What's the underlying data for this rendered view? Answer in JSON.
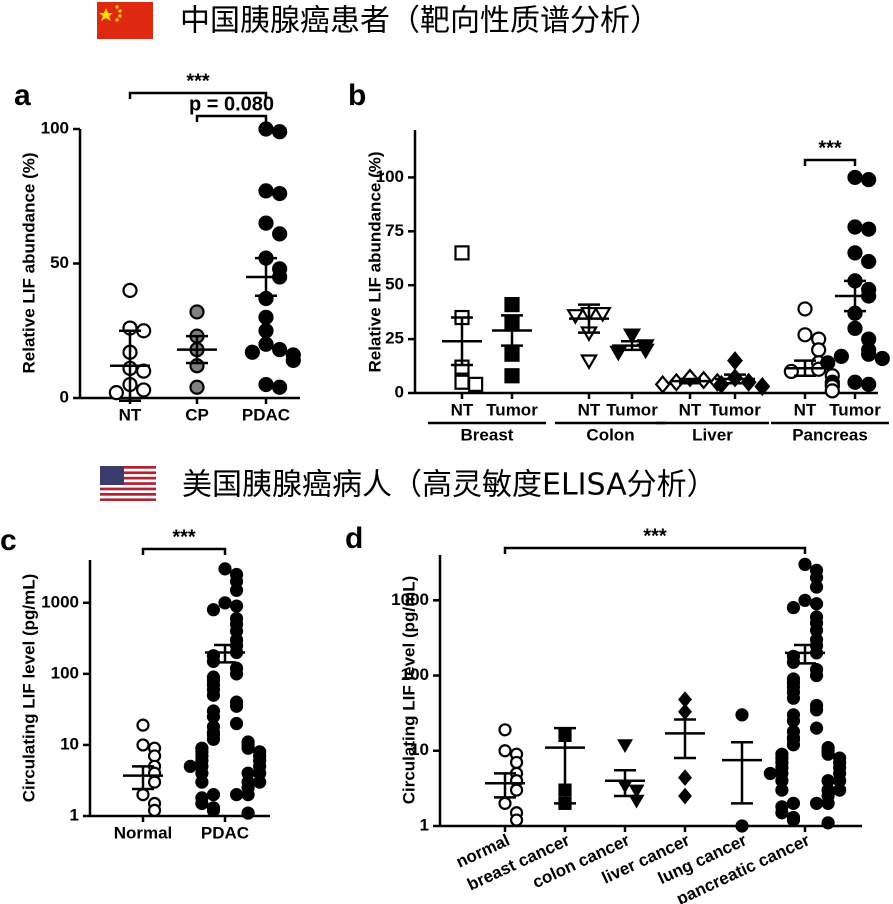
{
  "headers": [
    {
      "text": "中国胰腺癌患者（靶向性质谱分析）"
    },
    {
      "text": "美国胰腺癌病人（高灵敏度ELISA分析）"
    }
  ],
  "chart_data": [
    {
      "type": "strip",
      "label": "a",
      "ylabel": "Relative LIF abundance (%)",
      "ylim": [
        0,
        100
      ],
      "yticks": [
        0,
        50,
        100
      ],
      "series": [
        {
          "name": "NT",
          "marker": "circle",
          "color": "none",
          "values": [
            40,
            26,
            25,
            17,
            11,
            10,
            5,
            3,
            2
          ],
          "mean": 12,
          "error": 13
        },
        {
          "name": "CP",
          "marker": "circle",
          "color": "#808080",
          "values": [
            32,
            23,
            18,
            12,
            4
          ],
          "mean": 18,
          "error": 5
        },
        {
          "name": "PDAC",
          "marker": "circle",
          "color": "#000000",
          "values": [
            100,
            99,
            77,
            76,
            65,
            61,
            52,
            48,
            45,
            37,
            30,
            25,
            20,
            18,
            17,
            16,
            14,
            5,
            4
          ],
          "mean": 45,
          "error": 7
        }
      ],
      "annotations": [
        {
          "text": "***",
          "between": [
            "NT",
            "PDAC"
          ]
        },
        {
          "text": "p = 0.080",
          "between": [
            "CP",
            "PDAC"
          ]
        }
      ]
    },
    {
      "type": "strip",
      "label": "b",
      "ylabel": "Relative LIF abundance (%)",
      "ylim": [
        0,
        122
      ],
      "yticks": [
        0,
        25,
        50,
        75,
        100
      ],
      "groups": [
        {
          "name": "Breast",
          "series": [
            {
              "name": "NT",
              "marker": "square",
              "color": "none",
              "values": [
                65,
                35,
                12,
                5,
                4
              ],
              "mean": 24,
              "error": 11
            },
            {
              "name": "Tumor",
              "marker": "square",
              "color": "#000000",
              "values": [
                41,
                32,
                18,
                8
              ],
              "mean": 29,
              "error": 7
            }
          ]
        },
        {
          "name": "Colon",
          "series": [
            {
              "name": "NT",
              "marker": "triangle-down",
              "color": "none",
              "values": [
                37,
                37,
                36,
                28,
                15
              ],
              "mean": 34.5,
              "error": 6.5
            },
            {
              "name": "Tumor",
              "marker": "triangle-down",
              "color": "#000000",
              "values": [
                27,
                22,
                20,
                19
              ],
              "mean": 22,
              "error": 2
            }
          ]
        },
        {
          "name": "Liver",
          "series": [
            {
              "name": "NT",
              "marker": "diamond",
              "color": "none",
              "values": [
                7,
                6,
                5,
                5,
                4
              ],
              "mean": 5.5,
              "error": 1
            },
            {
              "name": "Tumor",
              "marker": "diamond",
              "color": "#000000",
              "values": [
                15,
                7,
                5,
                4,
                3
              ],
              "mean": 6.5,
              "error": 2
            }
          ]
        },
        {
          "name": "Pancreas",
          "series": [
            {
              "name": "NT",
              "marker": "circle",
              "color": "none",
              "values": [
                39,
                27,
                25,
                20,
                14,
                11,
                10,
                8,
                5,
                4,
                3,
                1
              ],
              "mean": 11.5,
              "error": 3.5
            },
            {
              "name": "Tumor",
              "marker": "circle",
              "color": "#000000",
              "values": [
                100,
                99,
                77,
                76,
                65,
                61,
                52,
                48,
                45,
                37,
                30,
                25,
                20,
                18,
                17,
                16,
                14,
                5,
                4
              ],
              "mean": 45,
              "error": 7
            }
          ]
        }
      ],
      "annotations": [
        {
          "text": "***",
          "group": "Pancreas",
          "between": [
            "NT",
            "Tumor"
          ]
        }
      ]
    },
    {
      "type": "strip",
      "label": "c",
      "ylabel": "Circulating LIF level (pg/mL)",
      "log_scale": true,
      "ylim": [
        1,
        4000
      ],
      "yticks": [
        1,
        10,
        100,
        1000
      ],
      "series": [
        {
          "name": "Normal",
          "marker": "circle",
          "color": "none",
          "values": [
            19,
            10,
            9,
            7,
            5,
            4,
            3,
            2,
            1.5,
            1.2
          ],
          "mean": 3.7,
          "error": 1.3
        },
        {
          "name": "PDAC",
          "marker": "circle",
          "color": "#000000",
          "values": [
            3000,
            2500,
            2000,
            1500,
            1000,
            900,
            800,
            600,
            500,
            400,
            300,
            250,
            200,
            180,
            150,
            120,
            100,
            90,
            80,
            70,
            60,
            50,
            40,
            35,
            30,
            25,
            20,
            18,
            15,
            14,
            12,
            11,
            10,
            9,
            9,
            8,
            8,
            7,
            7,
            6,
            6,
            5,
            5,
            5,
            4,
            4,
            4,
            3,
            3,
            3,
            2.5,
            2,
            2,
            2,
            1.8,
            1.5,
            1.3,
            1.2,
            1.1
          ],
          "mean": 200,
          "error": 55
        }
      ],
      "annotations": [
        {
          "text": "***",
          "between": [
            "Normal",
            "PDAC"
          ]
        }
      ]
    },
    {
      "type": "strip",
      "label": "d",
      "ylabel": "Circulating LIF level (pg/mL)",
      "log_scale": true,
      "ylim": [
        1,
        4000
      ],
      "yticks": [
        1,
        10,
        100,
        1000
      ],
      "series": [
        {
          "name": "normal",
          "marker": "circle",
          "color": "none",
          "values": [
            19,
            10,
            9,
            7,
            5,
            4,
            3,
            2,
            1.5,
            1.2
          ],
          "mean": 3.7,
          "error": 1.3
        },
        {
          "name": "breast cancer",
          "marker": "square",
          "color": "#000000",
          "values": [
            16,
            3,
            2
          ],
          "mean": 11,
          "error": 9
        },
        {
          "name": "colon cancer",
          "marker": "triangle-down",
          "color": "#000000",
          "values": [
            12,
            3.5,
            3,
            2.2
          ],
          "mean": 4,
          "error": 1.5
        },
        {
          "name": "liver cancer",
          "marker": "diamond",
          "color": "#000000",
          "values": [
            48,
            33,
            4.4,
            2.5
          ],
          "mean": 17,
          "error": 9
        },
        {
          "name": "lung cancer",
          "marker": "circle",
          "color": "#000000",
          "values": [
            30,
            1
          ],
          "mean": 7.5,
          "error": 5.5
        },
        {
          "name": "pancreatic cancer",
          "marker": "circle",
          "color": "#000000",
          "values": [
            3000,
            2500,
            2000,
            1500,
            1000,
            900,
            800,
            600,
            500,
            400,
            300,
            250,
            200,
            180,
            150,
            120,
            100,
            90,
            80,
            70,
            60,
            50,
            40,
            35,
            30,
            25,
            20,
            18,
            15,
            14,
            12,
            11,
            10,
            9,
            9,
            8,
            8,
            7,
            7,
            6,
            6,
            5,
            5,
            5,
            4,
            4,
            4,
            3,
            3,
            3,
            2.5,
            2,
            2,
            2,
            1.8,
            1.5,
            1.3,
            1.2,
            1.1
          ],
          "mean": 200,
          "error": 55
        }
      ],
      "annotations": [
        {
          "text": "***",
          "between": [
            "normal",
            "pancreatic cancer"
          ]
        }
      ]
    }
  ]
}
